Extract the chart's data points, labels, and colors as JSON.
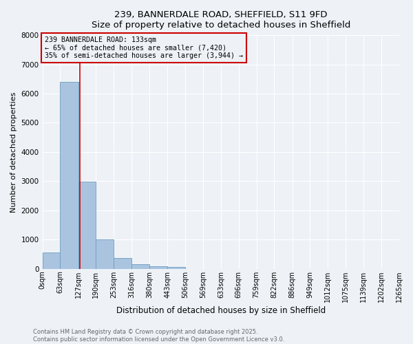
{
  "title_line1": "239, BANNERDALE ROAD, SHEFFIELD, S11 9FD",
  "title_line2": "Size of property relative to detached houses in Sheffield",
  "xlabel": "Distribution of detached houses by size in Sheffield",
  "ylabel": "Number of detached properties",
  "bin_edges": [
    0,
    63,
    127,
    190,
    253,
    316,
    380,
    443,
    506,
    569,
    633,
    696,
    759,
    822,
    886,
    949,
    1012,
    1075,
    1139,
    1202,
    1265
  ],
  "bin_labels": [
    "0sqm",
    "63sqm",
    "127sqm",
    "190sqm",
    "253sqm",
    "316sqm",
    "380sqm",
    "443sqm",
    "506sqm",
    "569sqm",
    "633sqm",
    "696sqm",
    "759sqm",
    "822sqm",
    "886sqm",
    "949sqm",
    "1012sqm",
    "1075sqm",
    "1139sqm",
    "1202sqm",
    "1265sqm"
  ],
  "bar_heights": [
    550,
    6400,
    2980,
    1000,
    370,
    160,
    95,
    60,
    0,
    0,
    0,
    0,
    0,
    0,
    0,
    0,
    0,
    0,
    0,
    0
  ],
  "bar_color": "#aac4e0",
  "bar_edge_color": "#6a9ec0",
  "vline_color": "#cc0000",
  "vline_x": 133,
  "ylim": [
    0,
    8000
  ],
  "annotation_text": "239 BANNERDALE ROAD: 133sqm\n← 65% of detached houses are smaller (7,420)\n35% of semi-detached houses are larger (3,944) →",
  "annotation_box_color": "#cc0000",
  "annotation_text_color": "#000000",
  "footnote1": "Contains HM Land Registry data © Crown copyright and database right 2025.",
  "footnote2": "Contains public sector information licensed under the Open Government Licence v3.0.",
  "bg_color": "#eef2f7",
  "grid_color": "#ffffff",
  "title_fontsize": 9.5,
  "xlabel_fontsize": 8.5,
  "ylabel_fontsize": 8.0,
  "tick_fontsize": 7.0,
  "annot_fontsize": 7.2,
  "footnote_fontsize": 6.0
}
